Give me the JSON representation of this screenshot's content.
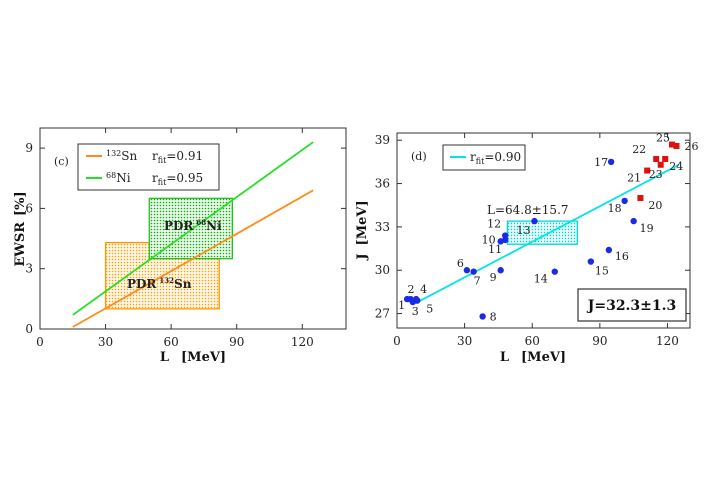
{
  "chart_data": [
    {
      "type": "line",
      "panel_tag": "(c)",
      "xlabel": "L",
      "xunit": "[MeV]",
      "ylabel": "EWSR",
      "yunit": "[%]",
      "xlim": [
        0,
        140
      ],
      "ylim": [
        0,
        10
      ],
      "xticks": [
        "0",
        "30",
        "60",
        "90",
        "120"
      ],
      "yticks": [
        "0",
        "3",
        "6",
        "9"
      ],
      "grid": false,
      "legend_position": "top-left",
      "series": [
        {
          "name": "132Sn",
          "name_sup": "132",
          "name_base": "Sn",
          "rfit_label": "r",
          "rfit_sub": "fit",
          "rfit_value": "=0.91",
          "color": "#ff8c1a",
          "x": [
            15,
            125
          ],
          "y": [
            0.1,
            6.9
          ]
        },
        {
          "name": "68Ni",
          "name_sup": "68",
          "name_base": "Ni",
          "rfit_label": "r",
          "rfit_sub": "fit",
          "rfit_value": "=0.95",
          "color": "#22e022",
          "x": [
            15,
            125
          ],
          "y": [
            0.7,
            9.3
          ]
        }
      ],
      "regions": [
        {
          "label_base": "PDR",
          "label_sup": "132",
          "label_el": "Sn",
          "color": "#ff9900",
          "x": [
            30,
            82
          ],
          "y": [
            1.0,
            4.3
          ]
        },
        {
          "label_base": "PDR",
          "label_sup": "68",
          "label_el": "Ni",
          "color": "#22c022",
          "x": [
            50,
            88
          ],
          "y": [
            3.5,
            6.5
          ]
        }
      ]
    },
    {
      "type": "scatter",
      "panel_tag": "(d)",
      "xlabel": "L",
      "xunit": "[MeV]",
      "ylabel": "J",
      "yunit": "[MeV]",
      "xlim": [
        0,
        130
      ],
      "ylim": [
        26,
        39.5
      ],
      "xticks": [
        "0",
        "30",
        "60",
        "90",
        "120"
      ],
      "yticks": [
        "27",
        "30",
        "33",
        "36",
        "39"
      ],
      "grid": false,
      "legend_position": "top-left",
      "fit": {
        "rfit_label": "r",
        "rfit_sub": "fit",
        "rfit_value": "=0.90",
        "color": "#00e5e5",
        "x": [
          8,
          125
        ],
        "y": [
          27.7,
          37.3
        ]
      },
      "region": {
        "label": "L=64.8±15.7",
        "x": [
          49,
          80
        ],
        "y": [
          31.8,
          33.4
        ],
        "color": "#00d8d8"
      },
      "result_box": "J=32.3±1.3",
      "points": [
        {
          "id": "1",
          "x": 4.5,
          "y": 28.0,
          "color": "#1a2be6",
          "shape": "circle"
        },
        {
          "id": "2",
          "x": 6.0,
          "y": 28.0,
          "color": "#1a2be6",
          "shape": "circle"
        },
        {
          "id": "3",
          "x": 7.0,
          "y": 27.8,
          "color": "#1a2be6",
          "shape": "circle"
        },
        {
          "id": "4",
          "x": 8.5,
          "y": 28.0,
          "color": "#1a2be6",
          "shape": "circle"
        },
        {
          "id": "5",
          "x": 9.0,
          "y": 27.9,
          "color": "#1a2be6",
          "shape": "circle"
        },
        {
          "id": "6",
          "x": 31.0,
          "y": 30.0,
          "color": "#1a2be6",
          "shape": "circle"
        },
        {
          "id": "7",
          "x": 34.0,
          "y": 29.9,
          "color": "#1a2be6",
          "shape": "circle"
        },
        {
          "id": "8",
          "x": 38.0,
          "y": 26.8,
          "color": "#1a2be6",
          "shape": "circle"
        },
        {
          "id": "9",
          "x": 46.0,
          "y": 30.0,
          "color": "#1a2be6",
          "shape": "circle"
        },
        {
          "id": "10",
          "x": 46.0,
          "y": 32.0,
          "color": "#1a2be6",
          "shape": "circle"
        },
        {
          "id": "11",
          "x": 48.0,
          "y": 32.1,
          "color": "#1a2be6",
          "shape": "circle"
        },
        {
          "id": "12",
          "x": 48.0,
          "y": 32.4,
          "color": "#1a2be6",
          "shape": "circle"
        },
        {
          "id": "13",
          "x": 61.0,
          "y": 33.4,
          "color": "#1a2be6",
          "shape": "circle"
        },
        {
          "id": "14",
          "x": 70.0,
          "y": 29.9,
          "color": "#1a2be6",
          "shape": "circle"
        },
        {
          "id": "15",
          "x": 86.0,
          "y": 30.6,
          "color": "#1a2be6",
          "shape": "circle"
        },
        {
          "id": "16",
          "x": 94.0,
          "y": 31.4,
          "color": "#1a2be6",
          "shape": "circle"
        },
        {
          "id": "17",
          "x": 95.0,
          "y": 37.5,
          "color": "#1a2be6",
          "shape": "circle"
        },
        {
          "id": "18",
          "x": 101.0,
          "y": 34.8,
          "color": "#1a2be6",
          "shape": "circle"
        },
        {
          "id": "19",
          "x": 105.0,
          "y": 33.4,
          "color": "#1a2be6",
          "shape": "circle"
        },
        {
          "id": "20",
          "x": 108.0,
          "y": 35.0,
          "color": "#e01010",
          "shape": "square"
        },
        {
          "id": "21",
          "x": 111.0,
          "y": 36.9,
          "color": "#e01010",
          "shape": "square"
        },
        {
          "id": "22",
          "x": 115.0,
          "y": 37.7,
          "color": "#e01010",
          "shape": "square"
        },
        {
          "id": "23",
          "x": 117.0,
          "y": 37.3,
          "color": "#e01010",
          "shape": "square"
        },
        {
          "id": "24",
          "x": 119.0,
          "y": 37.7,
          "color": "#e01010",
          "shape": "square"
        },
        {
          "id": "25",
          "x": 122.0,
          "y": 38.7,
          "color": "#e01010",
          "shape": "square"
        },
        {
          "id": "26",
          "x": 124.0,
          "y": 38.6,
          "color": "#e01010",
          "shape": "square"
        }
      ]
    }
  ]
}
